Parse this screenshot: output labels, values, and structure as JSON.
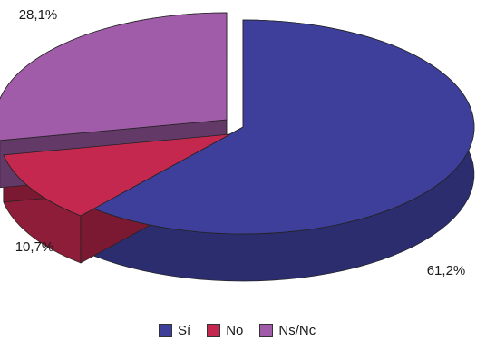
{
  "chart_data": {
    "type": "pie",
    "style": "3d-exploded",
    "slices": [
      {
        "label": "Sí",
        "value": 61.2,
        "display": "61,2%",
        "color": "#3d3f9a"
      },
      {
        "label": "No",
        "value": 10.7,
        "display": "10,7%",
        "color": "#c4284f"
      },
      {
        "label": "Ns/Nc",
        "value": 28.1,
        "display": "28,1%",
        "color": "#a05ca8"
      }
    ],
    "legend_position": "bottom"
  }
}
